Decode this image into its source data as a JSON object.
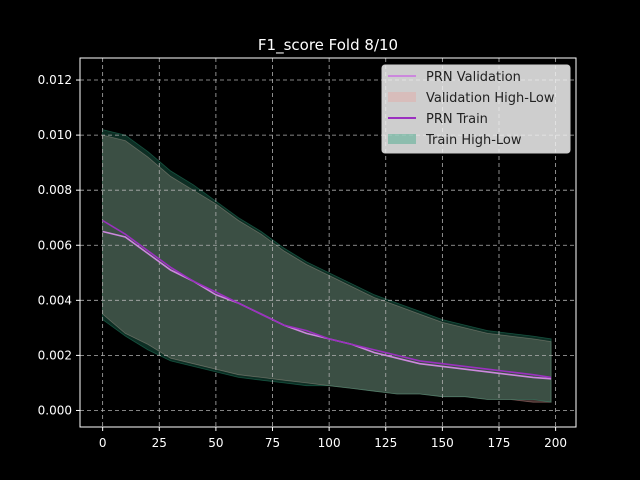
{
  "chart_data": {
    "type": "line",
    "title": "F1_score Fold 8/10",
    "xlabel": "",
    "ylabel": "",
    "xlim": [
      -10,
      209
    ],
    "ylim": [
      -0.0006,
      0.0128
    ],
    "xticks": [
      0,
      25,
      50,
      75,
      100,
      125,
      150,
      175,
      200
    ],
    "xtick_labels": [
      "0",
      "25",
      "50",
      "75",
      "100",
      "125",
      "150",
      "175",
      "200"
    ],
    "yticks": [
      0.0,
      0.002,
      0.004,
      0.006,
      0.008,
      0.01,
      0.012
    ],
    "ytick_labels": [
      "0.000",
      "0.002",
      "0.004",
      "0.006",
      "0.008",
      "0.010",
      "0.012"
    ],
    "grid": true,
    "legend_position": "top-right",
    "x": [
      0,
      10,
      20,
      30,
      40,
      50,
      60,
      70,
      80,
      90,
      100,
      110,
      120,
      130,
      140,
      150,
      160,
      170,
      180,
      190,
      198
    ],
    "series": [
      {
        "name": "PRN Validation",
        "kind": "line",
        "color": "#cc88dd",
        "values": [
          0.0065,
          0.0063,
          0.0057,
          0.0051,
          0.0047,
          0.0042,
          0.0039,
          0.0035,
          0.0031,
          0.0028,
          0.0026,
          0.0024,
          0.0021,
          0.0019,
          0.0017,
          0.0016,
          0.0015,
          0.0014,
          0.0013,
          0.0012,
          0.00115
        ]
      },
      {
        "name": "Validation High-Low",
        "kind": "band",
        "color": "#e8a4a0",
        "low": [
          0.0035,
          0.0028,
          0.0024,
          0.0019,
          0.0017,
          0.0015,
          0.0013,
          0.0012,
          0.0011,
          0.001,
          0.0009,
          0.0008,
          0.0007,
          0.0006,
          0.0006,
          0.0005,
          0.0005,
          0.0004,
          0.0004,
          0.0003,
          0.0003
        ],
        "high": [
          0.01,
          0.0098,
          0.0092,
          0.0085,
          0.008,
          0.0075,
          0.0069,
          0.0064,
          0.0058,
          0.0053,
          0.0049,
          0.0045,
          0.0041,
          0.0038,
          0.0035,
          0.0032,
          0.003,
          0.0028,
          0.0027,
          0.0026,
          0.0025
        ]
      },
      {
        "name": "PRN Train",
        "kind": "line",
        "color": "#9b30c0",
        "values": [
          0.0069,
          0.0064,
          0.0058,
          0.0052,
          0.0047,
          0.0043,
          0.0039,
          0.0035,
          0.0031,
          0.0029,
          0.0026,
          0.0024,
          0.0022,
          0.002,
          0.0018,
          0.0017,
          0.0016,
          0.0015,
          0.0014,
          0.0013,
          0.0012
        ]
      },
      {
        "name": "Train High-Low",
        "kind": "band",
        "color": "#2ea680",
        "low": [
          0.0033,
          0.0027,
          0.0022,
          0.0018,
          0.0016,
          0.0014,
          0.0012,
          0.0011,
          0.001,
          0.0009,
          0.0009,
          0.0008,
          0.0007,
          0.0006,
          0.0006,
          0.0005,
          0.0005,
          0.0004,
          0.0004,
          0.0004,
          0.0003
        ],
        "high": [
          0.0102,
          0.01,
          0.0094,
          0.0087,
          0.0082,
          0.0076,
          0.007,
          0.0065,
          0.0059,
          0.0054,
          0.005,
          0.0046,
          0.0042,
          0.0039,
          0.0036,
          0.0033,
          0.0031,
          0.0029,
          0.0028,
          0.0027,
          0.0026
        ]
      }
    ]
  }
}
